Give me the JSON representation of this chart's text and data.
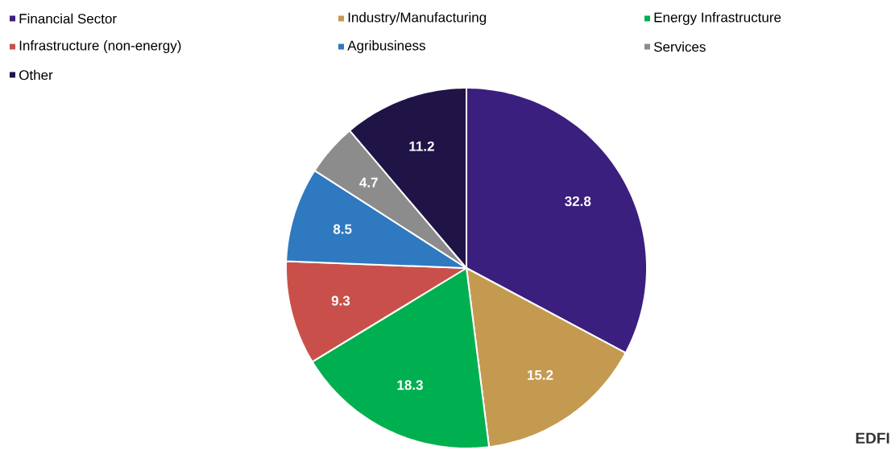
{
  "chart_data": {
    "type": "pie",
    "categories": [
      "Financial Sector",
      "Industry/Manufacturing",
      "Energy Infrastructure",
      "Infrastructure (non-energy)",
      "Agribusiness",
      "Services",
      "Other"
    ],
    "values": [
      32.8,
      15.2,
      18.3,
      9.3,
      8.5,
      4.7,
      11.2
    ],
    "colors": [
      "#3a1f7e",
      "#c49a50",
      "#00b050",
      "#c9504a",
      "#2e79c0",
      "#8c8c8c",
      "#201446"
    ],
    "data_labels": true,
    "legend": "top",
    "annotations": [
      "EDFI"
    ]
  }
}
